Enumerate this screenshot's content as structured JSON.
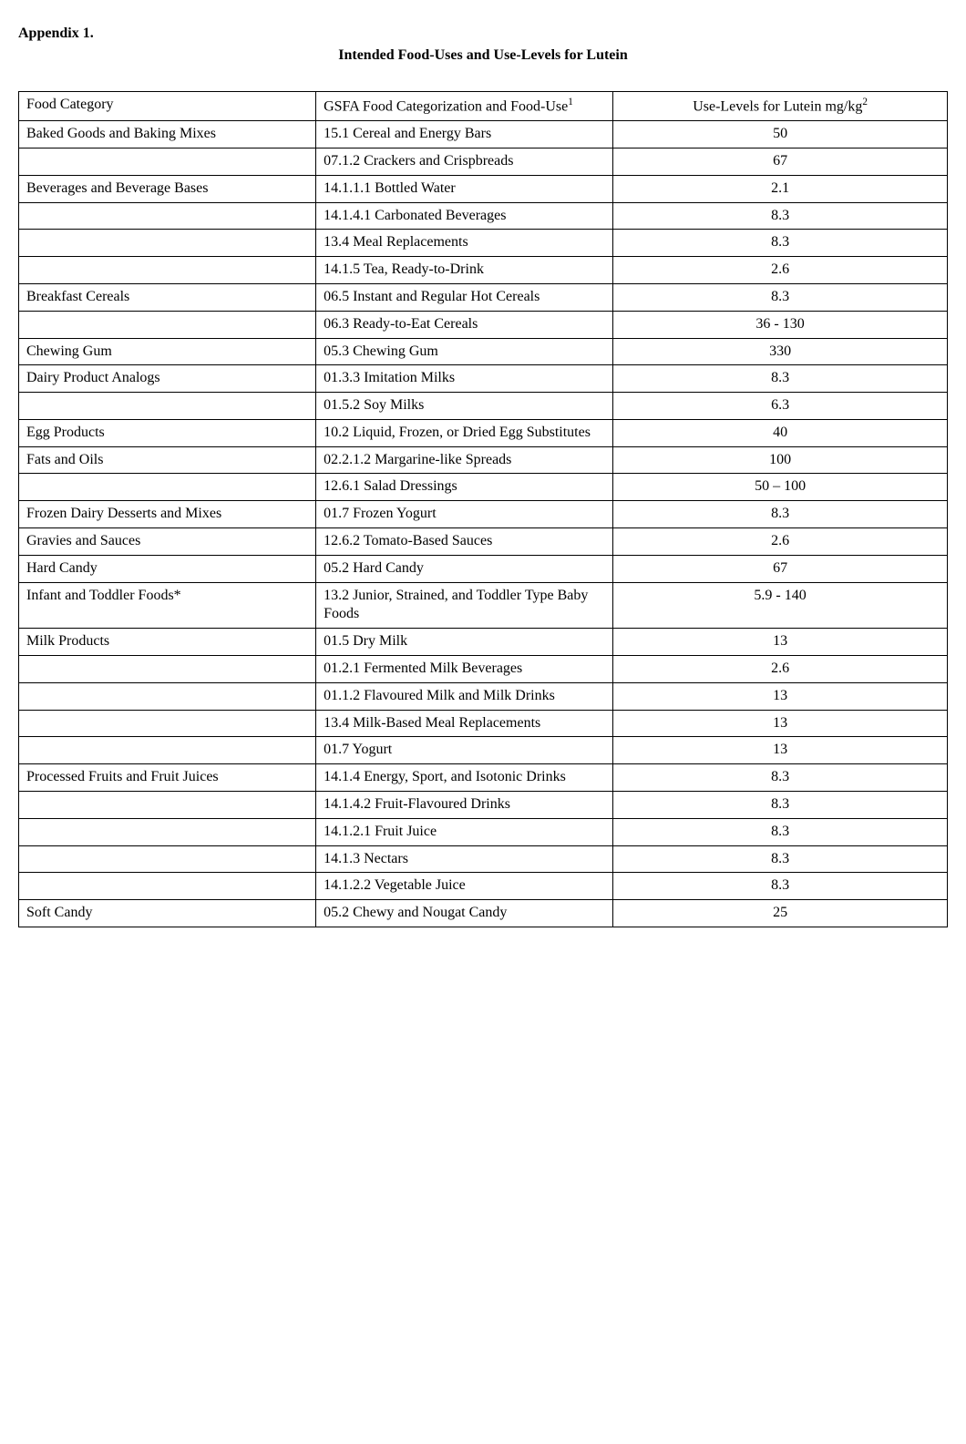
{
  "appendix_label": "Appendix 1.",
  "title_main": "Intended Food-Uses and Use-Levels for Lutein",
  "header": {
    "category": "Food Category",
    "gsfa_prefix": "GSFA Food Categorization and Food-Use",
    "gsfa_sup": "1",
    "level_prefix": "Use-Levels for Lutein mg/kg",
    "level_sup": "2"
  },
  "rows": [
    {
      "category": "Baked Goods and Baking Mixes",
      "use": "15.1 Cereal and Energy Bars",
      "level": "50"
    },
    {
      "category": "",
      "use": "07.1.2 Crackers and Crispbreads",
      "level": "67"
    },
    {
      "category": "Beverages and Beverage Bases",
      "use": "14.1.1.1 Bottled Water",
      "level": "2.1"
    },
    {
      "category": "",
      "use": "14.1.4.1 Carbonated Beverages",
      "level": "8.3"
    },
    {
      "category": "",
      "use": "13.4 Meal Replacements",
      "level": "8.3"
    },
    {
      "category": "",
      "use": "14.1.5 Tea, Ready-to-Drink",
      "level": "2.6"
    },
    {
      "category": "Breakfast Cereals",
      "use": "06.5 Instant and Regular Hot Cereals",
      "level": "8.3"
    },
    {
      "category": "",
      "use": "06.3 Ready-to-Eat Cereals",
      "level": "36 - 130"
    },
    {
      "category": "Chewing Gum",
      "use": "05.3 Chewing Gum",
      "level": "330"
    },
    {
      "category": "Dairy Product Analogs",
      "use": "01.3.3 Imitation Milks",
      "level": "8.3"
    },
    {
      "category": "",
      "use": "01.5.2 Soy Milks",
      "level": "6.3"
    },
    {
      "category": "Egg Products",
      "use": "10.2 Liquid, Frozen, or Dried Egg Substitutes",
      "level": "40"
    },
    {
      "category": "Fats and Oils",
      "use": "02.2.1.2 Margarine-like Spreads",
      "level": "100"
    },
    {
      "category": "",
      "use": "12.6.1 Salad Dressings",
      "level": "50 – 100"
    },
    {
      "category": "Frozen Dairy Desserts and Mixes",
      "use": "01.7 Frozen Yogurt",
      "level": "8.3"
    },
    {
      "category": "Gravies and Sauces",
      "use": "12.6.2 Tomato-Based Sauces",
      "level": "2.6"
    },
    {
      "category": "Hard Candy",
      "use": "05.2 Hard Candy",
      "level": "67"
    },
    {
      "category": "Infant and Toddler Foods*",
      "use": "13.2 Junior, Strained, and Toddler Type Baby Foods",
      "level": "5.9 - 140"
    },
    {
      "category": "Milk Products",
      "use": "01.5 Dry Milk",
      "level": "13"
    },
    {
      "category": "",
      "use": "01.2.1 Fermented Milk Beverages",
      "level": "2.6"
    },
    {
      "category": "",
      "use": "01.1.2 Flavoured Milk and Milk Drinks",
      "level": "13"
    },
    {
      "category": "",
      "use": "13.4 Milk-Based Meal Replacements",
      "level": "13"
    },
    {
      "category": "",
      "use": "01.7 Yogurt",
      "level": "13"
    },
    {
      "category": "Processed Fruits and Fruit Juices",
      "use": "14.1.4 Energy, Sport, and Isotonic Drinks",
      "level": "8.3"
    },
    {
      "category": "",
      "use": "14.1.4.2 Fruit-Flavoured Drinks",
      "level": "8.3"
    },
    {
      "category": "",
      "use": "14.1.2.1 Fruit Juice",
      "level": "8.3"
    },
    {
      "category": "",
      "use": "14.1.3 Nectars",
      "level": "8.3"
    },
    {
      "category": "",
      "use": "14.1.2.2 Vegetable Juice",
      "level": "8.3"
    },
    {
      "category": "Soft Candy",
      "use": "05.2 Chewy and Nougat Candy",
      "level": "25"
    }
  ]
}
